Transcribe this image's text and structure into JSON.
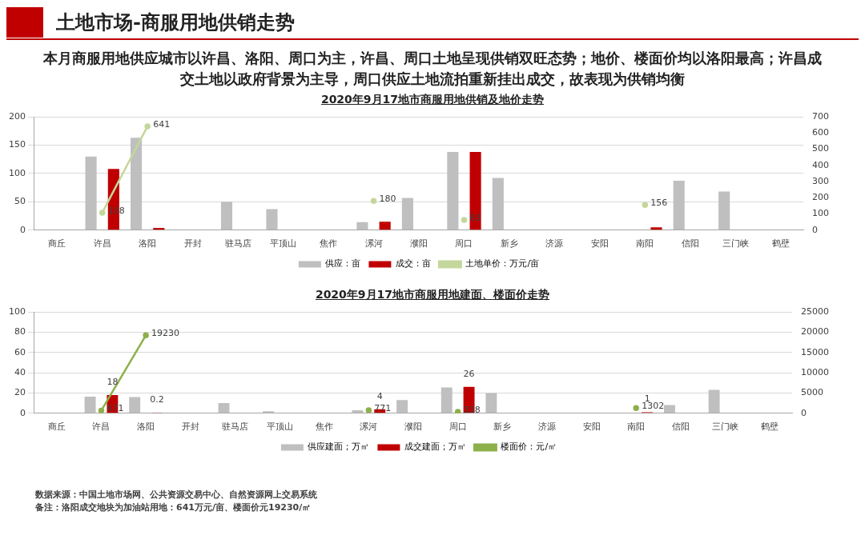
{
  "chart_data": [
    {
      "type": "bar",
      "title": "2020年9月17地市商服用地供销及地价走势",
      "annotations": [
        "土地市场-商服用地供销走势",
        "本月商服用地供应城市以许昌、洛阳、周口为主，许昌、周口土地呈现供销双旺态势；地价、楼面价均以洛阳最高；许昌成交土地以政府背景为主导，周口供应土地流拍重新挂出成交，故表现为供销均衡"
      ],
      "categories": [
        "商丘",
        "许昌",
        "洛阳",
        "开封",
        "驻马店",
        "平顶山",
        "焦作",
        "漯河",
        "濮阳",
        "周口",
        "新乡",
        "济源",
        "安阳",
        "南阳",
        "信阳",
        "三门峡",
        "鹤壁"
      ],
      "series": [
        {
          "name": "供应：亩",
          "color": "#bfbfbf",
          "values": [
            null,
            130,
            163,
            null,
            50,
            37,
            null,
            14,
            57,
            138,
            92,
            null,
            null,
            null,
            87,
            68,
            null
          ]
        },
        {
          "name": "成交：亩",
          "color": "#c00000",
          "values": [
            null,
            108,
            4,
            null,
            null,
            null,
            null,
            15,
            null,
            138,
            null,
            null,
            null,
            5,
            null,
            null,
            null
          ]
        },
        {
          "name": "土地单价：万元/亩",
          "type": "line",
          "axis": "y2",
          "color": "#c4d79b",
          "values": [
            null,
            108,
            641,
            null,
            null,
            null,
            null,
            180,
            null,
            63,
            null,
            null,
            null,
            156,
            null,
            null,
            null
          ],
          "value_labels": [
            null,
            "108",
            "641",
            null,
            null,
            null,
            null,
            "180",
            null,
            "63",
            null,
            null,
            null,
            "156",
            null,
            null,
            null
          ]
        }
      ],
      "ylim": [
        0,
        200
      ],
      "yticks": [
        0,
        50,
        100,
        150,
        200
      ],
      "y2lim": [
        0,
        700
      ],
      "y2ticks": [
        0,
        100,
        200,
        300,
        400,
        500,
        600,
        700
      ],
      "grid": "y",
      "legend": "bottom",
      "marker": "circle"
    },
    {
      "type": "bar",
      "title": "2020年9月17地市商服用地建面、楼面价走势",
      "annotations": [
        "数据来源：中国土地市场网、公共资源交易中心、自然资源网上交易系统",
        "备注：洛阳成交地块为加油站用地：641万元/亩、楼面价元19230/㎡"
      ],
      "categories": [
        "商丘",
        "许昌",
        "洛阳",
        "开封",
        "驻马店",
        "平顶山",
        "焦作",
        "漯河",
        "濮阳",
        "周口",
        "新乡",
        "济源",
        "安阳",
        "南阳",
        "信阳",
        "三门峡",
        "鹤壁"
      ],
      "series": [
        {
          "name": "供应建面；万㎡",
          "color": "#bfbfbf",
          "values": [
            null,
            16.5,
            16,
            null,
            10,
            2,
            null,
            3,
            13,
            25.5,
            20,
            null,
            null,
            null,
            8.2,
            23.2,
            null
          ]
        },
        {
          "name": "成交建面；万㎡",
          "color": "#c00000",
          "values": [
            null,
            18,
            0.2,
            null,
            null,
            null,
            null,
            4,
            null,
            26,
            null,
            null,
            null,
            1,
            null,
            null,
            null
          ],
          "value_labels": [
            null,
            "18",
            "0.2",
            null,
            null,
            null,
            null,
            "4",
            null,
            "26",
            null,
            null,
            null,
            "1",
            null,
            null,
            null
          ]
        },
        {
          "name": "楼面价：元/㎡",
          "type": "line",
          "axis": "y2",
          "color": "#8db04a",
          "values": [
            null,
            671,
            19230,
            null,
            null,
            null,
            null,
            771,
            null,
            338,
            null,
            null,
            null,
            1302,
            null,
            null,
            null
          ],
          "value_labels": [
            null,
            "671",
            "19230",
            null,
            null,
            null,
            null,
            "771",
            null,
            "338",
            null,
            null,
            null,
            "1302",
            null,
            null,
            null
          ]
        }
      ],
      "ylim": [
        0,
        100
      ],
      "yticks": [
        0,
        20,
        40,
        60,
        80,
        100
      ],
      "y2lim": [
        0,
        25000
      ],
      "y2ticks": [
        0,
        5000,
        10000,
        15000,
        20000,
        25000
      ],
      "grid": "y",
      "legend": "bottom",
      "marker": "circle"
    }
  ]
}
